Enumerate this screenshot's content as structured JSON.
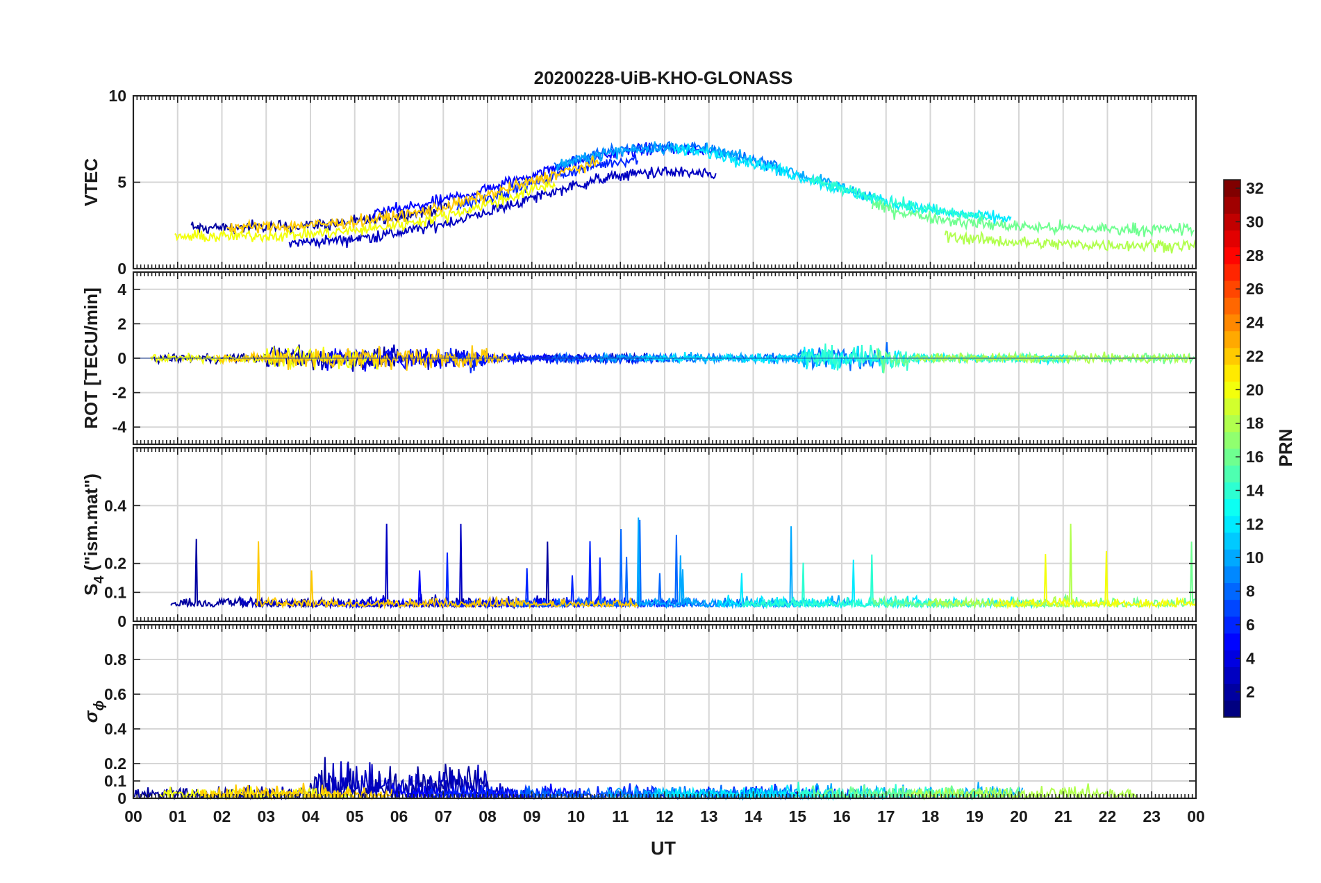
{
  "figure": {
    "title": "20200228-UiB-KHO-GLONASS",
    "xlabel": "UT"
  },
  "chart_data": [
    {
      "type": "line",
      "ylabel": "VTEC",
      "ylim": [
        0,
        10
      ],
      "yticks": [
        "0",
        "5",
        "10"
      ],
      "grid": true,
      "series_prn": [
        2,
        3,
        5,
        6,
        8,
        10,
        12,
        14,
        16,
        18,
        20,
        22
      ],
      "xlim": [
        0,
        24
      ],
      "xticks": [
        "00",
        "01",
        "02",
        "03",
        "04",
        "05",
        "06",
        "07",
        "08",
        "09",
        "10",
        "11",
        "12",
        "13",
        "14",
        "15",
        "16",
        "17",
        "18",
        "19",
        "20",
        "21",
        "22",
        "23",
        "00"
      ]
    },
    {
      "type": "line",
      "ylabel": "ROT [TECU/min]",
      "ylim": [
        -5,
        5
      ],
      "yticks": [
        "-4",
        "-2",
        "0",
        "2",
        "4"
      ],
      "grid": true
    },
    {
      "type": "line",
      "ylabel": "S",
      "ylabel_sub": "4",
      "ylabel_suffix": " (\"ism.mat\")",
      "ylim": [
        0,
        0.6
      ],
      "yticks": [
        "0",
        "0.1",
        "0.2",
        "0.4"
      ],
      "grid": true
    },
    {
      "type": "line",
      "ylabel": "σ",
      "ylabel_sub": "ϕ",
      "ylim": [
        0,
        1
      ],
      "yticks": [
        "0",
        "0.1",
        "0.2",
        "0.4",
        "0.6",
        "0.8"
      ],
      "grid": true
    }
  ],
  "colorbar": {
    "label": "PRN",
    "range": [
      1,
      32
    ],
    "ticks": [
      "2",
      "4",
      "6",
      "8",
      "10",
      "12",
      "14",
      "16",
      "18",
      "20",
      "22",
      "24",
      "26",
      "28",
      "30",
      "32"
    ],
    "colormap": "jet"
  }
}
